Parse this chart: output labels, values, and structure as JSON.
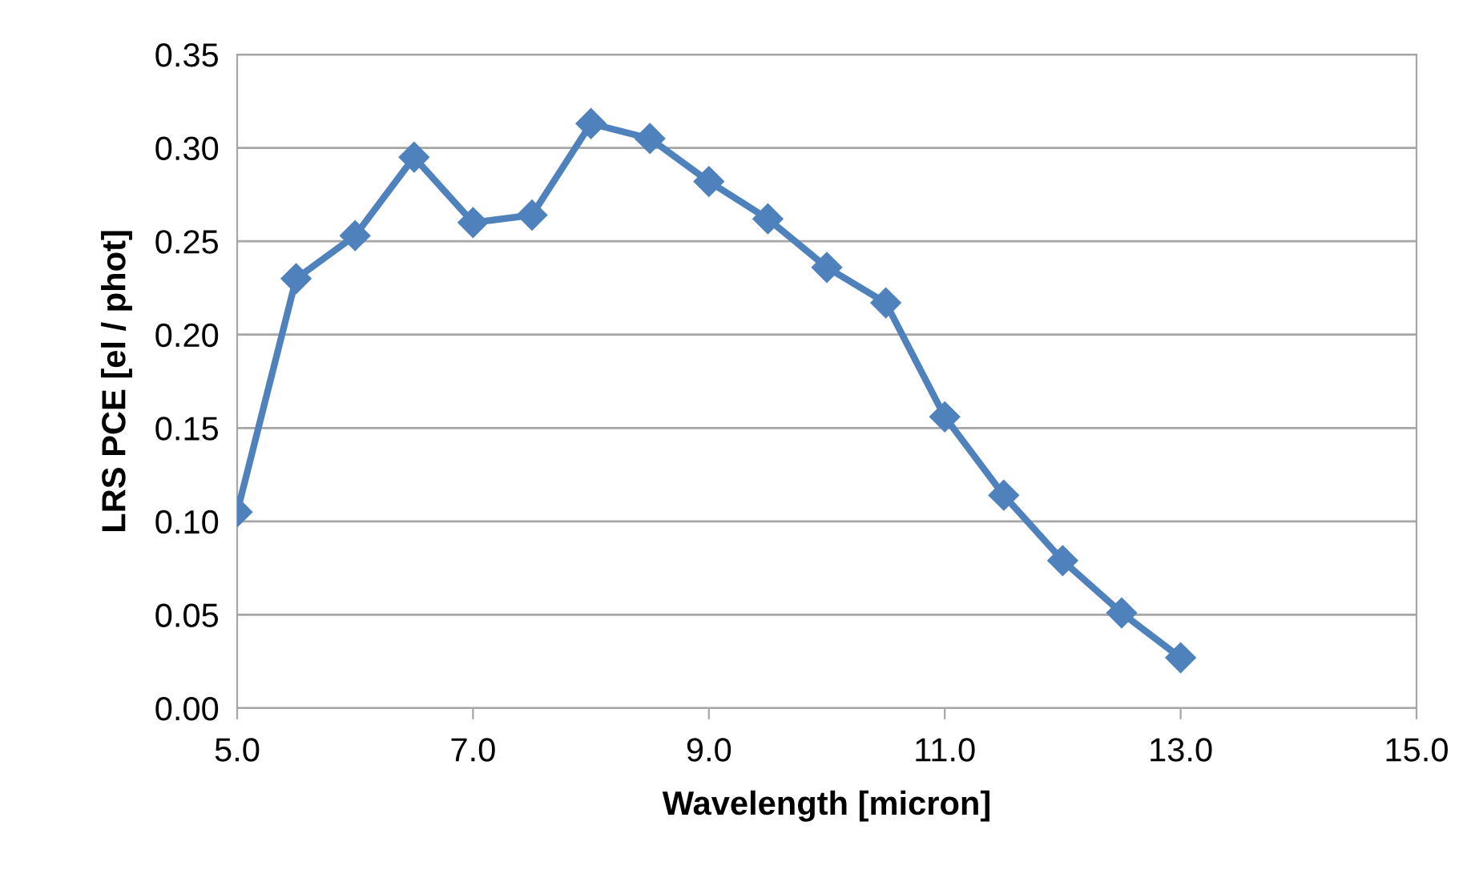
{
  "chart_data": {
    "type": "line",
    "xlabel": "Wavelength [micron]",
    "ylabel": "LRS PCE [el / phot]",
    "x": [
      5.0,
      5.5,
      6.0,
      6.5,
      7.0,
      7.5,
      8.0,
      8.5,
      9.0,
      9.5,
      10.0,
      10.5,
      11.0,
      11.5,
      12.0,
      12.5,
      13.0
    ],
    "series": [
      {
        "color": "#4f81bd",
        "values": [
          0.105,
          0.23,
          0.253,
          0.295,
          0.26,
          0.264,
          0.313,
          0.305,
          0.282,
          0.262,
          0.236,
          0.217,
          0.156,
          0.114,
          0.079,
          0.051,
          0.027
        ]
      }
    ],
    "xlim": [
      5,
      15
    ],
    "xticks": [
      {
        "value": 5,
        "label": "5.0"
      },
      {
        "value": 7,
        "label": "7.0"
      },
      {
        "value": 9,
        "label": "9.0"
      },
      {
        "value": 11,
        "label": "11.0"
      },
      {
        "value": 13,
        "label": "13.0"
      },
      {
        "value": 15,
        "label": "15.0"
      }
    ],
    "ylim": [
      0,
      0.35
    ],
    "yticks": [
      {
        "value": 0,
        "label": "0.00"
      },
      {
        "value": 0.05,
        "label": "0.05"
      },
      {
        "value": 0.1,
        "label": "0.10"
      },
      {
        "value": 0.15,
        "label": "0.15"
      },
      {
        "value": 0.2,
        "label": "0.20"
      },
      {
        "value": 0.25,
        "label": "0.25"
      },
      {
        "value": 0.3,
        "label": "0.30"
      },
      {
        "value": 0.35,
        "label": "0.35"
      }
    ],
    "grid": "y",
    "marker": "diamond",
    "line_style": "solid"
  }
}
